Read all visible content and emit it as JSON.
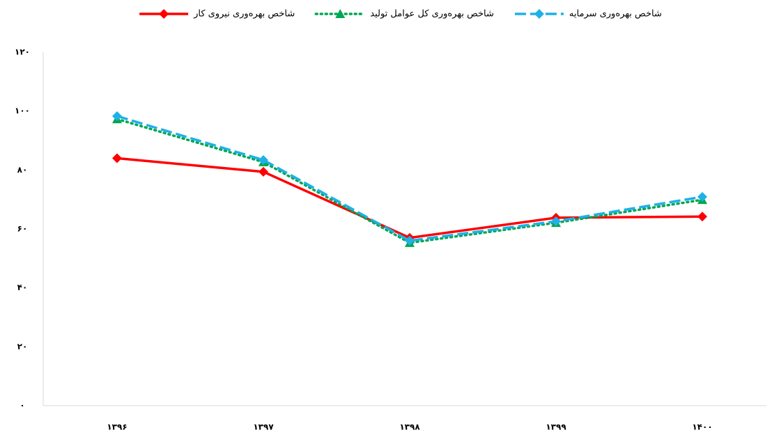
{
  "chart_data": {
    "type": "line",
    "categories": [
      "۱۳۹۶",
      "۱۳۹۷",
      "۱۳۹۸",
      "۱۳۹۹",
      "۱۴۰۰"
    ],
    "series": [
      {
        "name": "شاخص بهره‌وری نیروی کار",
        "color": "#ff0000",
        "marker": "diamond",
        "dash": "solid",
        "values": [
          84,
          79.4,
          57,
          63.8,
          64.2
        ]
      },
      {
        "name": "شاخص بهره‌وری کل عوامل تولید",
        "color": "#00a651",
        "marker": "triangle",
        "dash": "dotted",
        "values": [
          97.3,
          82.7,
          55.3,
          62.1,
          69.9
        ]
      },
      {
        "name": "شاخص بهره‌وری سرمایه",
        "color": "#1fb0e8",
        "marker": "diamond",
        "dash": "dashed",
        "values": [
          98.3,
          83.4,
          56,
          62.6,
          70.9
        ]
      }
    ],
    "ylim": [
      0,
      120
    ],
    "yticks": [
      {
        "value": 0,
        "label": "۰"
      },
      {
        "value": 20,
        "label": "۲۰"
      },
      {
        "value": 40,
        "label": "۴۰"
      },
      {
        "value": 60,
        "label": "۶۰"
      },
      {
        "value": 80,
        "label": "۸۰"
      },
      {
        "value": 100,
        "label": "۱۰۰"
      },
      {
        "value": 120,
        "label": "۱۲۰"
      }
    ],
    "grid": false,
    "legend": "top"
  }
}
